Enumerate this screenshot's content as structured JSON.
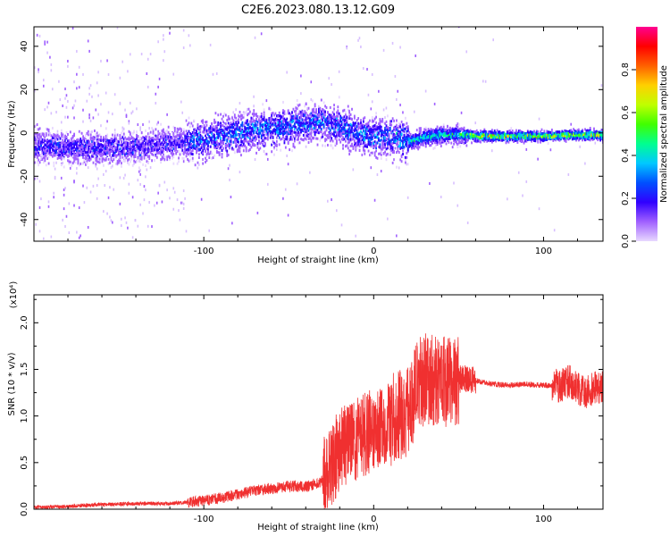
{
  "title": "C2E6.2023.080.13.12.G09",
  "chart_data": [
    {
      "type": "heatmap",
      "xlabel": "Height of straight line (km)",
      "ylabel": "Frequency (Hz)",
      "xlim": [
        -200,
        135
      ],
      "ylim": [
        -50,
        49
      ],
      "x_ticks": [
        -100,
        0,
        100
      ],
      "y_ticks": [
        -40,
        -20,
        0,
        20,
        40
      ],
      "colorbar": {
        "label": "Normalized spectral amplitude",
        "range": [
          0,
          1
        ],
        "ticks": [
          "0.0",
          "0.2",
          "0.4",
          "0.6",
          "0.8"
        ],
        "colors": [
          "#e8d8ff",
          "#a060ff",
          "#3000ff",
          "#0050ff",
          "#00c8ff",
          "#00ff90",
          "#40ff00",
          "#c0ff00",
          "#ffd000",
          "#ff6000",
          "#ff0000",
          "#ff0090"
        ]
      },
      "centerline": [
        [
          -200,
          -6
        ],
        [
          -180,
          -7
        ],
        [
          -160,
          -7
        ],
        [
          -140,
          -7
        ],
        [
          -120,
          -5
        ],
        [
          -110,
          -4
        ],
        [
          -100,
          -3
        ],
        [
          -80,
          0
        ],
        [
          -60,
          2
        ],
        [
          -40,
          4
        ],
        [
          -30,
          5
        ],
        [
          -20,
          3
        ],
        [
          -10,
          0
        ],
        [
          0,
          -2
        ],
        [
          10,
          -2
        ],
        [
          20,
          -4
        ],
        [
          30,
          -2
        ],
        [
          40,
          -1
        ],
        [
          50,
          -1
        ],
        [
          60,
          -1.5
        ],
        [
          80,
          -1.5
        ],
        [
          100,
          -1.5
        ],
        [
          120,
          -1
        ],
        [
          135,
          -1
        ]
      ]
    },
    {
      "type": "line",
      "xlabel": "Height of straight line (km)",
      "ylabel": "SNR (10 * v/v)",
      "y_multiplier": "(x10⁴)",
      "xlim": [
        -200,
        135
      ],
      "ylim": [
        0,
        2.3
      ],
      "x_ticks": [
        -100,
        0,
        100
      ],
      "y_tick_labels": [
        "0.0",
        "0.5",
        "1.0",
        "1.5",
        "2.0"
      ],
      "series": [
        {
          "color": "#f03030",
          "x": [
            -200,
            -180,
            -160,
            -140,
            -120,
            -100,
            -90,
            -80,
            -70,
            -60,
            -50,
            -40,
            -30,
            -25,
            -20,
            -10,
            0,
            10,
            20,
            25,
            30,
            40,
            50,
            60,
            70,
            80,
            90,
            100,
            110,
            115,
            120,
            125,
            130,
            135
          ],
          "y": [
            0.02,
            0.03,
            0.05,
            0.06,
            0.06,
            0.09,
            0.12,
            0.16,
            0.2,
            0.22,
            0.25,
            0.24,
            0.3,
            0.45,
            0.65,
            0.75,
            0.85,
            0.95,
            1.05,
            1.3,
            1.4,
            1.35,
            1.4,
            1.38,
            1.34,
            1.33,
            1.34,
            1.33,
            1.32,
            1.38,
            1.3,
            1.25,
            1.3,
            1.3
          ]
        }
      ]
    }
  ]
}
